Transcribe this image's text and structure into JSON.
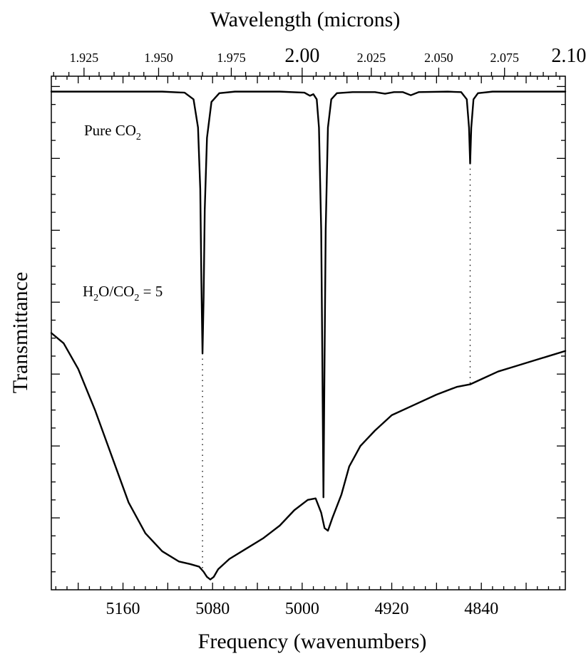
{
  "chart_data": {
    "type": "line",
    "title": "",
    "xlabel": "Frequency (wavenumbers)",
    "x2label": "Wavelength (microns)",
    "ylabel": "Transmittance",
    "xlim": [
      5224,
      4765
    ],
    "x_ticks_labeled": [
      "5160",
      "5080",
      "5000",
      "4920",
      "4840"
    ],
    "x2_ticks_small": [
      "1.925",
      "1.950",
      "1.975",
      "2.025",
      "2.050",
      "2.075"
    ],
    "x2_ticks_big": [
      "2.00",
      "2.10"
    ],
    "y_ticks_labeled": false,
    "grid": false,
    "annotations": [
      {
        "text": "Pure CO",
        "sub": "2"
      },
      {
        "text": "H",
        "sub": "2",
        "text2": "O/CO",
        "sub2": "2",
        "text3": " = 5"
      }
    ],
    "reference_lines_x": [
      5089,
      4981,
      4850
    ],
    "series": [
      {
        "label_ref": "annotations.0",
        "points": [
          [
            5224,
            0.97
          ],
          [
            5190,
            0.97
          ],
          [
            5125,
            0.97
          ],
          [
            5105,
            0.968
          ],
          [
            5097,
            0.955
          ],
          [
            5093,
            0.9
          ],
          [
            5091,
            0.78
          ],
          [
            5090,
            0.6
          ],
          [
            5089,
            0.46
          ],
          [
            5088,
            0.57
          ],
          [
            5087,
            0.74
          ],
          [
            5085,
            0.88
          ],
          [
            5081,
            0.95
          ],
          [
            5074,
            0.967
          ],
          [
            5060,
            0.97
          ],
          [
            5020,
            0.97
          ],
          [
            4998,
            0.968
          ],
          [
            4993,
            0.962
          ],
          [
            4990,
            0.965
          ],
          [
            4987,
            0.955
          ],
          [
            4985,
            0.9
          ],
          [
            4983,
            0.7
          ],
          [
            4982,
            0.45
          ],
          [
            4981,
            0.18
          ],
          [
            4980,
            0.45
          ],
          [
            4979,
            0.7
          ],
          [
            4977,
            0.9
          ],
          [
            4974,
            0.955
          ],
          [
            4969,
            0.967
          ],
          [
            4955,
            0.969
          ],
          [
            4935,
            0.969
          ],
          [
            4926,
            0.966
          ],
          [
            4918,
            0.969
          ],
          [
            4910,
            0.969
          ],
          [
            4903,
            0.963
          ],
          [
            4896,
            0.969
          ],
          [
            4870,
            0.97
          ],
          [
            4858,
            0.969
          ],
          [
            4853,
            0.955
          ],
          [
            4851,
            0.9
          ],
          [
            4850,
            0.83
          ],
          [
            4849,
            0.9
          ],
          [
            4847,
            0.955
          ],
          [
            4843,
            0.967
          ],
          [
            4830,
            0.97
          ],
          [
            4765,
            0.97
          ]
        ]
      },
      {
        "label_ref": "annotations.1",
        "points": [
          [
            5224,
            0.5
          ],
          [
            5213,
            0.48
          ],
          [
            5200,
            0.43
          ],
          [
            5185,
            0.35
          ],
          [
            5170,
            0.26
          ],
          [
            5155,
            0.17
          ],
          [
            5140,
            0.11
          ],
          [
            5125,
            0.075
          ],
          [
            5110,
            0.055
          ],
          [
            5100,
            0.05
          ],
          [
            5092,
            0.045
          ],
          [
            5088,
            0.035
          ],
          [
            5085,
            0.025
          ],
          [
            5082,
            0.02
          ],
          [
            5079,
            0.025
          ],
          [
            5075,
            0.04
          ],
          [
            5065,
            0.06
          ],
          [
            5050,
            0.08
          ],
          [
            5035,
            0.1
          ],
          [
            5020,
            0.125
          ],
          [
            5007,
            0.155
          ],
          [
            4995,
            0.175
          ],
          [
            4988,
            0.178
          ],
          [
            4983,
            0.15
          ],
          [
            4980,
            0.12
          ],
          [
            4977,
            0.115
          ],
          [
            4973,
            0.14
          ],
          [
            4965,
            0.185
          ],
          [
            4958,
            0.24
          ],
          [
            4953,
            0.26
          ],
          [
            4948,
            0.28
          ],
          [
            4935,
            0.31
          ],
          [
            4920,
            0.34
          ],
          [
            4900,
            0.36
          ],
          [
            4880,
            0.38
          ],
          [
            4862,
            0.395
          ],
          [
            4850,
            0.4
          ],
          [
            4840,
            0.41
          ],
          [
            4825,
            0.425
          ],
          [
            4810,
            0.435
          ],
          [
            4795,
            0.445
          ],
          [
            4780,
            0.455
          ],
          [
            4765,
            0.465
          ]
        ]
      }
    ]
  }
}
